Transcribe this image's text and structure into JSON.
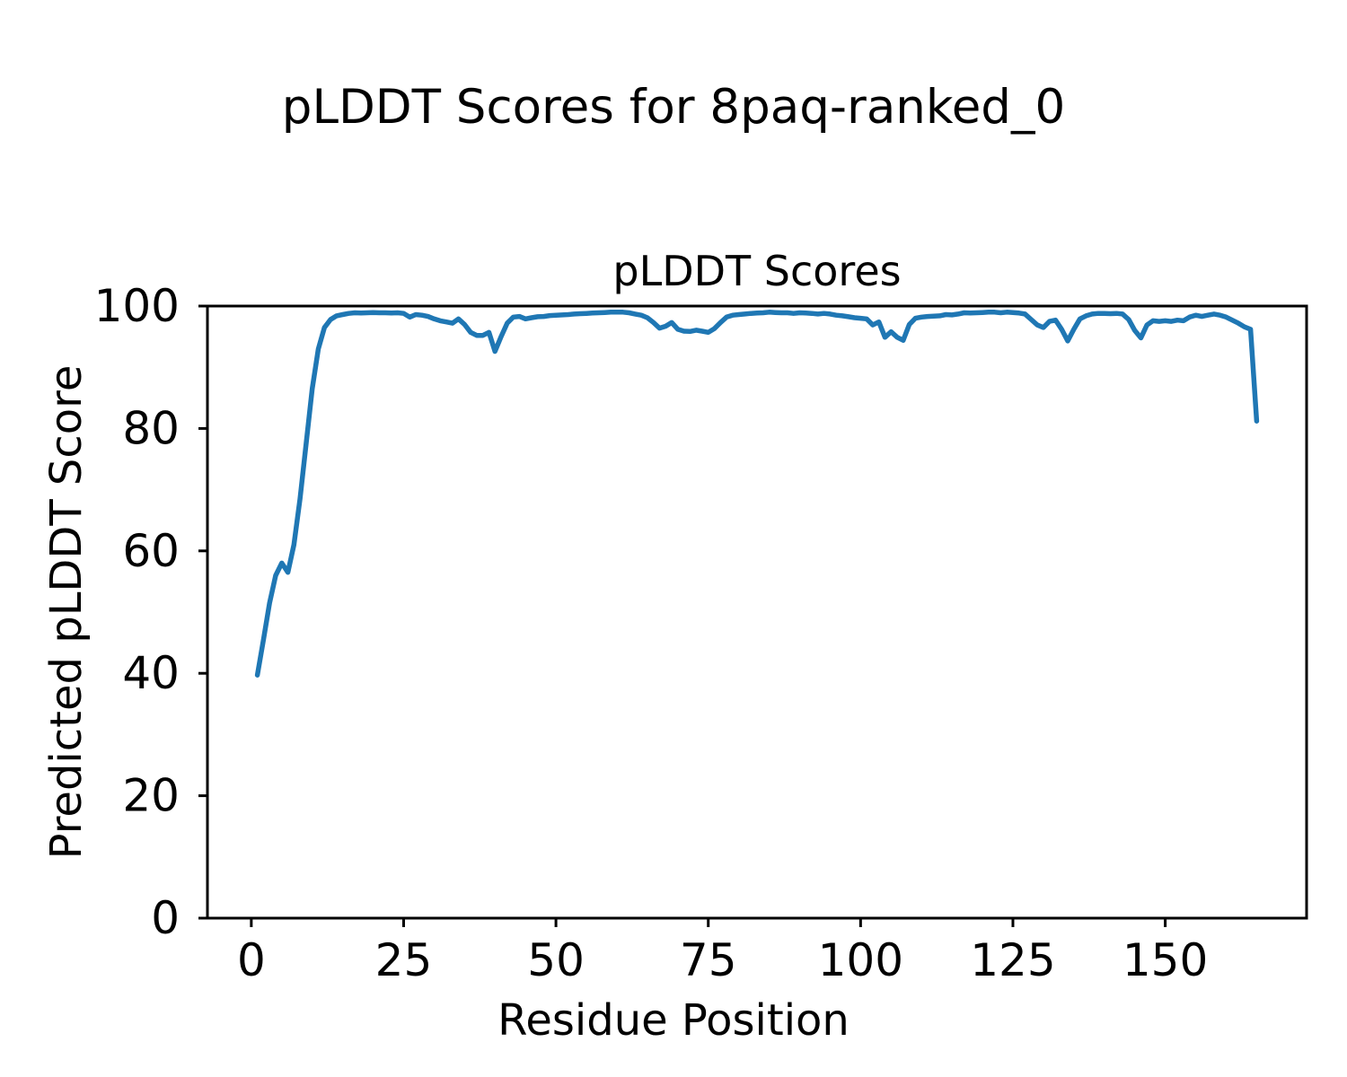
{
  "figure": {
    "suptitle": "pLDDT Scores for 8paq-ranked_0"
  },
  "chart_data": {
    "type": "line",
    "title": "pLDDT Scores",
    "xlabel": "Residue Position",
    "ylabel": "Predicted pLDDT Score",
    "x_start": 1,
    "x_end": 165,
    "x_step": 1,
    "values": [
      39.7,
      45.5,
      51.5,
      56.0,
      58.0,
      56.5,
      61.0,
      68.5,
      77.5,
      86.5,
      93.0,
      96.5,
      97.8,
      98.4,
      98.6,
      98.8,
      98.9,
      98.85,
      98.9,
      98.95,
      98.9,
      98.9,
      98.85,
      98.9,
      98.8,
      98.2,
      98.6,
      98.5,
      98.3,
      97.9,
      97.6,
      97.4,
      97.2,
      97.9,
      97.0,
      95.7,
      95.2,
      95.2,
      95.7,
      92.6,
      95.0,
      97.2,
      98.2,
      98.3,
      97.9,
      98.1,
      98.25,
      98.3,
      98.45,
      98.5,
      98.55,
      98.6,
      98.7,
      98.75,
      98.8,
      98.85,
      98.9,
      98.95,
      99.0,
      99.0,
      99.0,
      98.9,
      98.7,
      98.5,
      98.1,
      97.3,
      96.4,
      96.7,
      97.3,
      96.2,
      95.9,
      95.85,
      96.05,
      95.9,
      95.7,
      96.3,
      97.3,
      98.2,
      98.5,
      98.6,
      98.7,
      98.8,
      98.85,
      98.9,
      99.0,
      98.95,
      98.9,
      98.9,
      98.8,
      98.9,
      98.85,
      98.8,
      98.7,
      98.8,
      98.7,
      98.5,
      98.4,
      98.25,
      98.1,
      98.0,
      97.9,
      96.9,
      97.4,
      94.9,
      95.8,
      94.9,
      94.4,
      97.0,
      98.0,
      98.2,
      98.3,
      98.35,
      98.4,
      98.6,
      98.55,
      98.7,
      98.9,
      98.85,
      98.9,
      98.95,
      99.0,
      99.0,
      98.9,
      99.0,
      98.95,
      98.85,
      98.7,
      97.8,
      96.9,
      96.5,
      97.5,
      97.7,
      96.2,
      94.3,
      96.2,
      97.9,
      98.4,
      98.7,
      98.8,
      98.8,
      98.75,
      98.8,
      98.7,
      97.8,
      96.0,
      94.8,
      96.9,
      97.6,
      97.5,
      97.6,
      97.5,
      97.7,
      97.6,
      98.2,
      98.5,
      98.3,
      98.5,
      98.7,
      98.5,
      98.2,
      97.7,
      97.2,
      96.6,
      96.2,
      81.2
    ],
    "xticks": [
      0,
      25,
      50,
      75,
      100,
      125,
      150
    ],
    "yticks": [
      0,
      20,
      40,
      60,
      80,
      100
    ],
    "xlim": [
      -7.2,
      173.2
    ],
    "ylim": [
      0,
      100
    ],
    "grid": false,
    "legend": "none",
    "line_color": "#1f77b4",
    "axis_color": "#000000",
    "background_color": "#ffffff"
  }
}
